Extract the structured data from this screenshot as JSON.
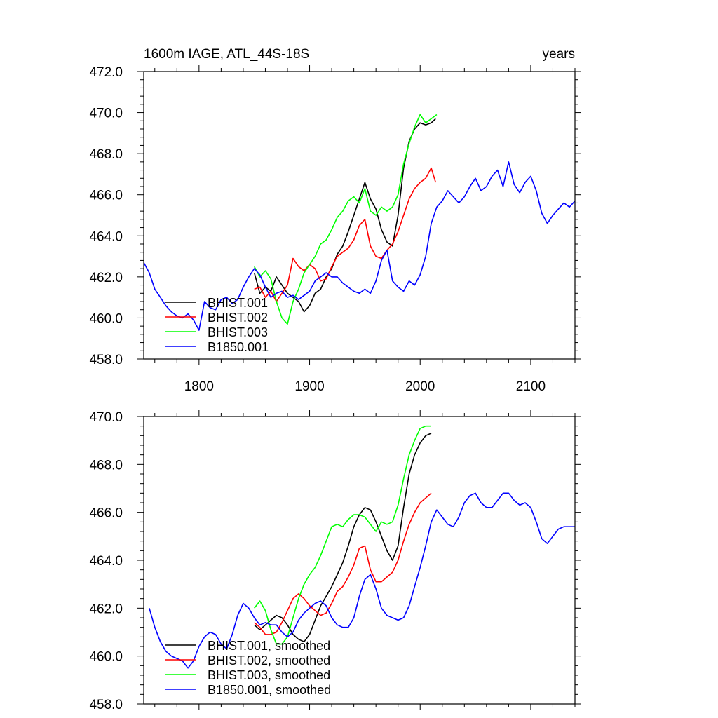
{
  "chart_data": [
    {
      "type": "line",
      "title": "1600m IAGE, ATL_44S-18S",
      "title_right": "years",
      "xlim": [
        1750,
        2140
      ],
      "ylim": [
        458.0,
        472.0
      ],
      "x_ticks": [
        1800,
        1900,
        2000,
        2100
      ],
      "x_tick_labels": [
        "1800",
        "1900",
        "2000",
        "2100"
      ],
      "y_ticks": [
        458.0,
        460.0,
        462.0,
        464.0,
        466.0,
        468.0,
        470.0,
        472.0
      ],
      "y_tick_labels": [
        "458.0",
        "460.0",
        "462.0",
        "464.0",
        "466.0",
        "468.0",
        "470.0",
        "472.0"
      ],
      "legend_position": "bottom-left",
      "series": [
        {
          "name": "BHIST.001",
          "color": "#000000",
          "x": [
            1850,
            1855,
            1860,
            1865,
            1870,
            1875,
            1880,
            1885,
            1890,
            1895,
            1900,
            1905,
            1910,
            1915,
            1920,
            1925,
            1930,
            1935,
            1940,
            1945,
            1950,
            1955,
            1960,
            1965,
            1970,
            1975,
            1980,
            1985,
            1990,
            1995,
            2000,
            2005,
            2010,
            2014
          ],
          "y": [
            462.2,
            461.2,
            461.5,
            461.3,
            462.0,
            461.6,
            461.2,
            461.0,
            460.8,
            460.3,
            460.6,
            461.2,
            461.4,
            462.0,
            462.4,
            463.1,
            463.5,
            464.2,
            465.0,
            465.8,
            466.6,
            465.8,
            465.3,
            464.3,
            463.7,
            463.5,
            465.0,
            467.3,
            468.6,
            469.2,
            469.5,
            469.4,
            469.5,
            469.7
          ]
        },
        {
          "name": "BHIST.002",
          "color": "#ff0000",
          "x": [
            1850,
            1855,
            1860,
            1865,
            1870,
            1875,
            1880,
            1885,
            1890,
            1895,
            1900,
            1905,
            1910,
            1915,
            1920,
            1925,
            1930,
            1935,
            1940,
            1945,
            1950,
            1955,
            1960,
            1965,
            1970,
            1975,
            1980,
            1985,
            1990,
            1995,
            2000,
            2005,
            2010,
            2014
          ],
          "y": [
            461.4,
            461.5,
            461.0,
            461.3,
            460.8,
            461.2,
            461.6,
            462.9,
            462.5,
            462.3,
            462.6,
            462.4,
            461.8,
            461.9,
            462.5,
            463.0,
            463.2,
            463.4,
            463.8,
            464.5,
            464.8,
            463.5,
            463.0,
            462.9,
            463.3,
            463.6,
            464.2,
            465.0,
            465.8,
            466.3,
            466.6,
            466.8,
            467.3,
            466.6
          ]
        },
        {
          "name": "BHIST.003",
          "color": "#00ff00",
          "x": [
            1850,
            1855,
            1860,
            1865,
            1870,
            1875,
            1880,
            1885,
            1890,
            1895,
            1900,
            1905,
            1910,
            1915,
            1920,
            1925,
            1930,
            1935,
            1940,
            1945,
            1950,
            1955,
            1960,
            1965,
            1970,
            1975,
            1980,
            1985,
            1990,
            1995,
            2000,
            2005,
            2010,
            2015
          ],
          "y": [
            462.5,
            462.0,
            462.3,
            461.9,
            460.8,
            460.0,
            459.7,
            460.8,
            461.4,
            462.2,
            462.6,
            463.0,
            463.6,
            463.8,
            464.3,
            464.9,
            465.2,
            465.7,
            465.9,
            465.6,
            466.3,
            465.2,
            465.0,
            465.4,
            465.2,
            465.4,
            466.0,
            467.5,
            468.5,
            469.3,
            469.9,
            469.5,
            469.7,
            469.9
          ]
        },
        {
          "name": "B1850.001",
          "color": "#0000ff",
          "x": [
            1750,
            1755,
            1760,
            1765,
            1770,
            1775,
            1780,
            1785,
            1790,
            1795,
            1800,
            1805,
            1810,
            1815,
            1820,
            1825,
            1830,
            1835,
            1840,
            1845,
            1850,
            1855,
            1860,
            1865,
            1870,
            1875,
            1880,
            1885,
            1890,
            1895,
            1900,
            1905,
            1910,
            1915,
            1920,
            1925,
            1930,
            1935,
            1940,
            1945,
            1950,
            1955,
            1960,
            1965,
            1970,
            1975,
            1980,
            1985,
            1990,
            1995,
            2000,
            2005,
            2010,
            2015,
            2020,
            2025,
            2030,
            2035,
            2040,
            2045,
            2050,
            2055,
            2060,
            2065,
            2070,
            2075,
            2080,
            2085,
            2090,
            2095,
            2100,
            2105,
            2110,
            2115,
            2120,
            2125,
            2130,
            2135,
            2140
          ],
          "y": [
            462.7,
            462.2,
            461.4,
            461.0,
            460.6,
            460.3,
            460.1,
            460.0,
            460.2,
            459.9,
            459.4,
            460.8,
            460.5,
            460.4,
            460.9,
            461.0,
            460.7,
            460.9,
            461.5,
            462.0,
            462.4,
            462.1,
            461.5,
            461.0,
            461.2,
            461.3,
            461.0,
            461.1,
            460.9,
            461.1,
            461.3,
            461.8,
            462.0,
            462.2,
            462.0,
            462.0,
            461.7,
            461.5,
            461.3,
            461.2,
            461.4,
            461.2,
            461.8,
            462.8,
            463.3,
            461.8,
            461.5,
            461.3,
            461.8,
            461.6,
            462.1,
            463.0,
            464.6,
            465.4,
            465.7,
            466.2,
            465.9,
            465.6,
            465.9,
            466.4,
            466.8,
            466.2,
            466.4,
            466.9,
            467.2,
            466.4,
            467.6,
            466.5,
            466.1,
            466.6,
            466.9,
            466.2,
            465.1,
            464.6,
            465.0,
            465.3,
            465.6,
            465.4,
            465.7
          ]
        }
      ]
    },
    {
      "type": "line",
      "xlim": [
        1750,
        2140
      ],
      "ylim": [
        458.0,
        470.0
      ],
      "x_ticks": [
        1800,
        1900,
        2000,
        2100
      ],
      "y_ticks": [
        458.0,
        460.0,
        462.0,
        464.0,
        466.0,
        468.0,
        470.0
      ],
      "y_tick_labels": [
        "458.0",
        "460.0",
        "462.0",
        "464.0",
        "466.0",
        "468.0",
        "470.0"
      ],
      "legend_position": "bottom-left",
      "series": [
        {
          "name": "BHIST.001, smoothed",
          "color": "#000000",
          "x": [
            1850,
            1855,
            1860,
            1865,
            1870,
            1875,
            1880,
            1885,
            1890,
            1895,
            1900,
            1905,
            1910,
            1915,
            1920,
            1925,
            1930,
            1935,
            1940,
            1945,
            1950,
            1955,
            1960,
            1965,
            1970,
            1975,
            1980,
            1985,
            1990,
            1995,
            2000,
            2005,
            2010
          ],
          "y": [
            461.3,
            461.1,
            461.3,
            461.5,
            461.7,
            461.6,
            461.3,
            460.9,
            460.7,
            460.6,
            460.9,
            461.5,
            462.1,
            462.5,
            462.9,
            463.4,
            463.9,
            464.6,
            465.4,
            465.9,
            466.2,
            466.1,
            465.6,
            465.0,
            464.4,
            464.0,
            464.6,
            466.2,
            467.6,
            468.4,
            468.9,
            469.2,
            469.3
          ]
        },
        {
          "name": "BHIST.002, smoothed",
          "color": "#ff0000",
          "x": [
            1850,
            1855,
            1860,
            1865,
            1870,
            1875,
            1880,
            1885,
            1890,
            1895,
            1900,
            1905,
            1910,
            1915,
            1920,
            1925,
            1930,
            1935,
            1940,
            1945,
            1950,
            1955,
            1960,
            1965,
            1970,
            1975,
            1980,
            1985,
            1990,
            1995,
            2000,
            2005,
            2010
          ],
          "y": [
            461.4,
            461.2,
            460.9,
            460.9,
            461.0,
            461.4,
            461.9,
            462.4,
            462.6,
            462.4,
            462.1,
            461.9,
            461.7,
            461.8,
            462.2,
            462.7,
            462.9,
            463.3,
            463.8,
            464.5,
            464.6,
            463.6,
            463.1,
            463.1,
            463.3,
            463.5,
            464.0,
            464.8,
            465.5,
            466.0,
            466.4,
            466.6,
            466.8
          ]
        },
        {
          "name": "BHIST.003, smoothed",
          "color": "#00ff00",
          "x": [
            1850,
            1855,
            1860,
            1865,
            1870,
            1875,
            1880,
            1885,
            1890,
            1895,
            1900,
            1905,
            1910,
            1915,
            1920,
            1925,
            1930,
            1935,
            1940,
            1945,
            1950,
            1955,
            1960,
            1965,
            1970,
            1975,
            1980,
            1985,
            1990,
            1995,
            2000,
            2005,
            2010
          ],
          "y": [
            462.0,
            462.3,
            461.9,
            461.1,
            460.5,
            460.5,
            460.8,
            461.6,
            462.4,
            463.0,
            463.4,
            463.7,
            464.2,
            464.8,
            465.4,
            465.5,
            465.4,
            465.7,
            465.9,
            465.9,
            465.8,
            465.5,
            465.2,
            465.6,
            465.5,
            465.6,
            466.3,
            467.4,
            468.4,
            469.0,
            469.5,
            469.6,
            469.6
          ]
        },
        {
          "name": "B1850.001, smoothed",
          "color": "#0000ff",
          "x": [
            1755,
            1760,
            1765,
            1770,
            1775,
            1780,
            1785,
            1790,
            1795,
            1800,
            1805,
            1810,
            1815,
            1820,
            1825,
            1830,
            1835,
            1840,
            1845,
            1850,
            1855,
            1860,
            1865,
            1870,
            1875,
            1880,
            1885,
            1890,
            1895,
            1900,
            1905,
            1910,
            1915,
            1920,
            1925,
            1930,
            1935,
            1940,
            1945,
            1950,
            1955,
            1960,
            1965,
            1970,
            1975,
            1980,
            1985,
            1990,
            1995,
            2000,
            2005,
            2010,
            2015,
            2020,
            2025,
            2030,
            2035,
            2040,
            2045,
            2050,
            2055,
            2060,
            2065,
            2070,
            2075,
            2080,
            2085,
            2090,
            2095,
            2100,
            2105,
            2110,
            2115,
            2120,
            2125,
            2130,
            2135,
            2140
          ],
          "y": [
            462.0,
            461.2,
            460.6,
            460.2,
            460.0,
            459.9,
            459.8,
            459.5,
            459.8,
            460.4,
            460.8,
            461.0,
            460.9,
            460.5,
            460.3,
            460.9,
            461.7,
            462.2,
            462.0,
            461.6,
            461.3,
            461.4,
            461.3,
            461.3,
            461.0,
            460.8,
            461.0,
            461.5,
            461.8,
            462.0,
            462.2,
            462.3,
            462.1,
            461.6,
            461.3,
            461.2,
            461.2,
            461.6,
            462.5,
            463.2,
            463.4,
            462.8,
            462.0,
            461.7,
            461.6,
            461.5,
            461.6,
            462.1,
            462.9,
            463.7,
            464.6,
            465.6,
            466.1,
            465.8,
            465.5,
            465.4,
            465.8,
            466.4,
            466.7,
            466.8,
            466.4,
            466.2,
            466.2,
            466.5,
            466.8,
            466.8,
            466.5,
            466.3,
            466.4,
            466.2,
            465.6,
            464.9,
            464.7,
            465.0,
            465.3,
            465.4,
            465.4,
            465.4
          ]
        }
      ]
    }
  ]
}
